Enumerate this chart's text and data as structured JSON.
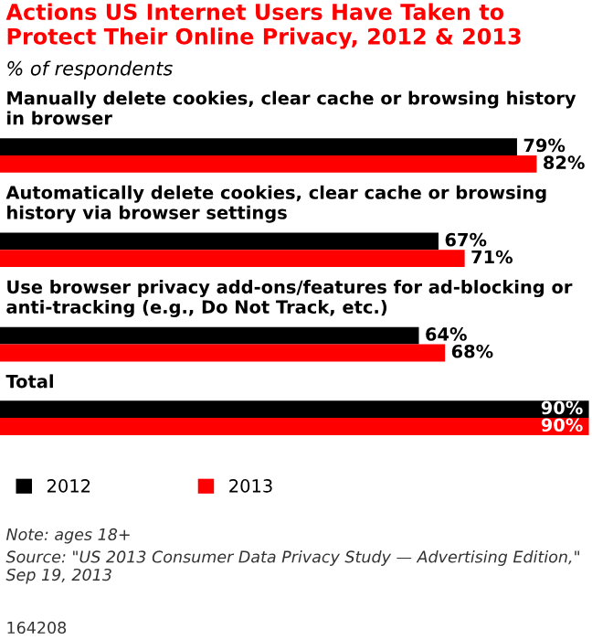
{
  "chart_data": {
    "type": "bar",
    "orientation": "horizontal",
    "title": "Actions US Internet Users Have Taken to Protect Their Online Privacy, 2012 & 2013",
    "subtitle": "% of respondents",
    "categories": [
      "Manually delete cookies, clear cache or browsing history in browser",
      "Automatically delete cookies, clear cache or browsing history via browser settings",
      "Use browser privacy add-ons/features for ad-blocking or anti-tracking (e.g., Do Not Track, etc.)",
      "Total"
    ],
    "series": [
      {
        "name": "2012",
        "color": "#000000",
        "values": [
          79,
          67,
          64,
          90
        ],
        "value_labels": [
          "79%",
          "67%",
          "64%",
          "90%"
        ]
      },
      {
        "name": "2013",
        "color": "#ff0000",
        "values": [
          82,
          71,
          68,
          90
        ],
        "value_labels": [
          "82%",
          "71%",
          "68%",
          "90%"
        ]
      }
    ],
    "legend": "bottom left",
    "annotations": [
      "Note: ages 18+",
      "Source: \"US 2013 Consumer Data Privacy Study — Advertising Edition,\" Sep 19, 2013",
      "164208"
    ]
  }
}
